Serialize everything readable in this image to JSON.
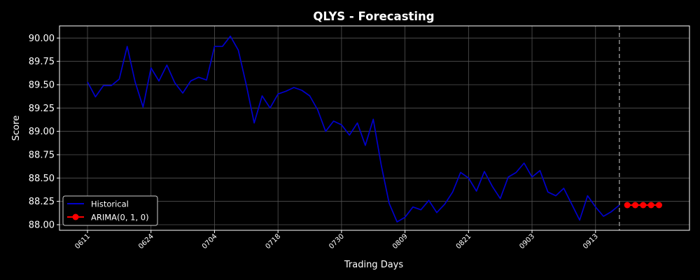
{
  "chart_data": {
    "type": "line",
    "title": "QLYS - Forecasting",
    "xlabel": "Trading Days",
    "ylabel": "Score",
    "ylim": [
      87.94,
      90.13
    ],
    "grid": true,
    "legend_position": "lower-left",
    "x_ticks": [
      "0611",
      "0624",
      "0704",
      "0718",
      "0730",
      "0809",
      "0821",
      "0903",
      "0913"
    ],
    "y_ticks": [
      "88.00",
      "88.25",
      "88.50",
      "88.75",
      "89.00",
      "89.25",
      "89.50",
      "89.75",
      "90.00"
    ],
    "series": [
      {
        "name": "Historical",
        "color": "#0000cc",
        "values": [
          89.53,
          89.37,
          89.49,
          89.49,
          89.56,
          89.91,
          89.53,
          89.26,
          89.68,
          89.54,
          89.71,
          89.52,
          89.41,
          89.54,
          89.58,
          89.55,
          89.91,
          89.91,
          90.02,
          89.87,
          89.5,
          89.09,
          89.38,
          89.25,
          89.4,
          89.43,
          89.47,
          89.44,
          89.38,
          89.23,
          89.0,
          89.11,
          89.07,
          88.96,
          89.09,
          88.85,
          89.13,
          88.64,
          88.23,
          88.03,
          88.08,
          88.19,
          88.16,
          88.26,
          88.13,
          88.22,
          88.35,
          88.56,
          88.5,
          88.36,
          88.57,
          88.41,
          88.28,
          88.51,
          88.56,
          88.66,
          88.51,
          88.58,
          88.35,
          88.31,
          88.39,
          88.22,
          88.05,
          88.31,
          88.19,
          88.09,
          88.14,
          88.21
        ]
      },
      {
        "name": "ARIMA(0, 1, 0)",
        "color": "#ff0000",
        "values": [
          88.21,
          88.21,
          88.21,
          88.21,
          88.21
        ]
      }
    ]
  }
}
